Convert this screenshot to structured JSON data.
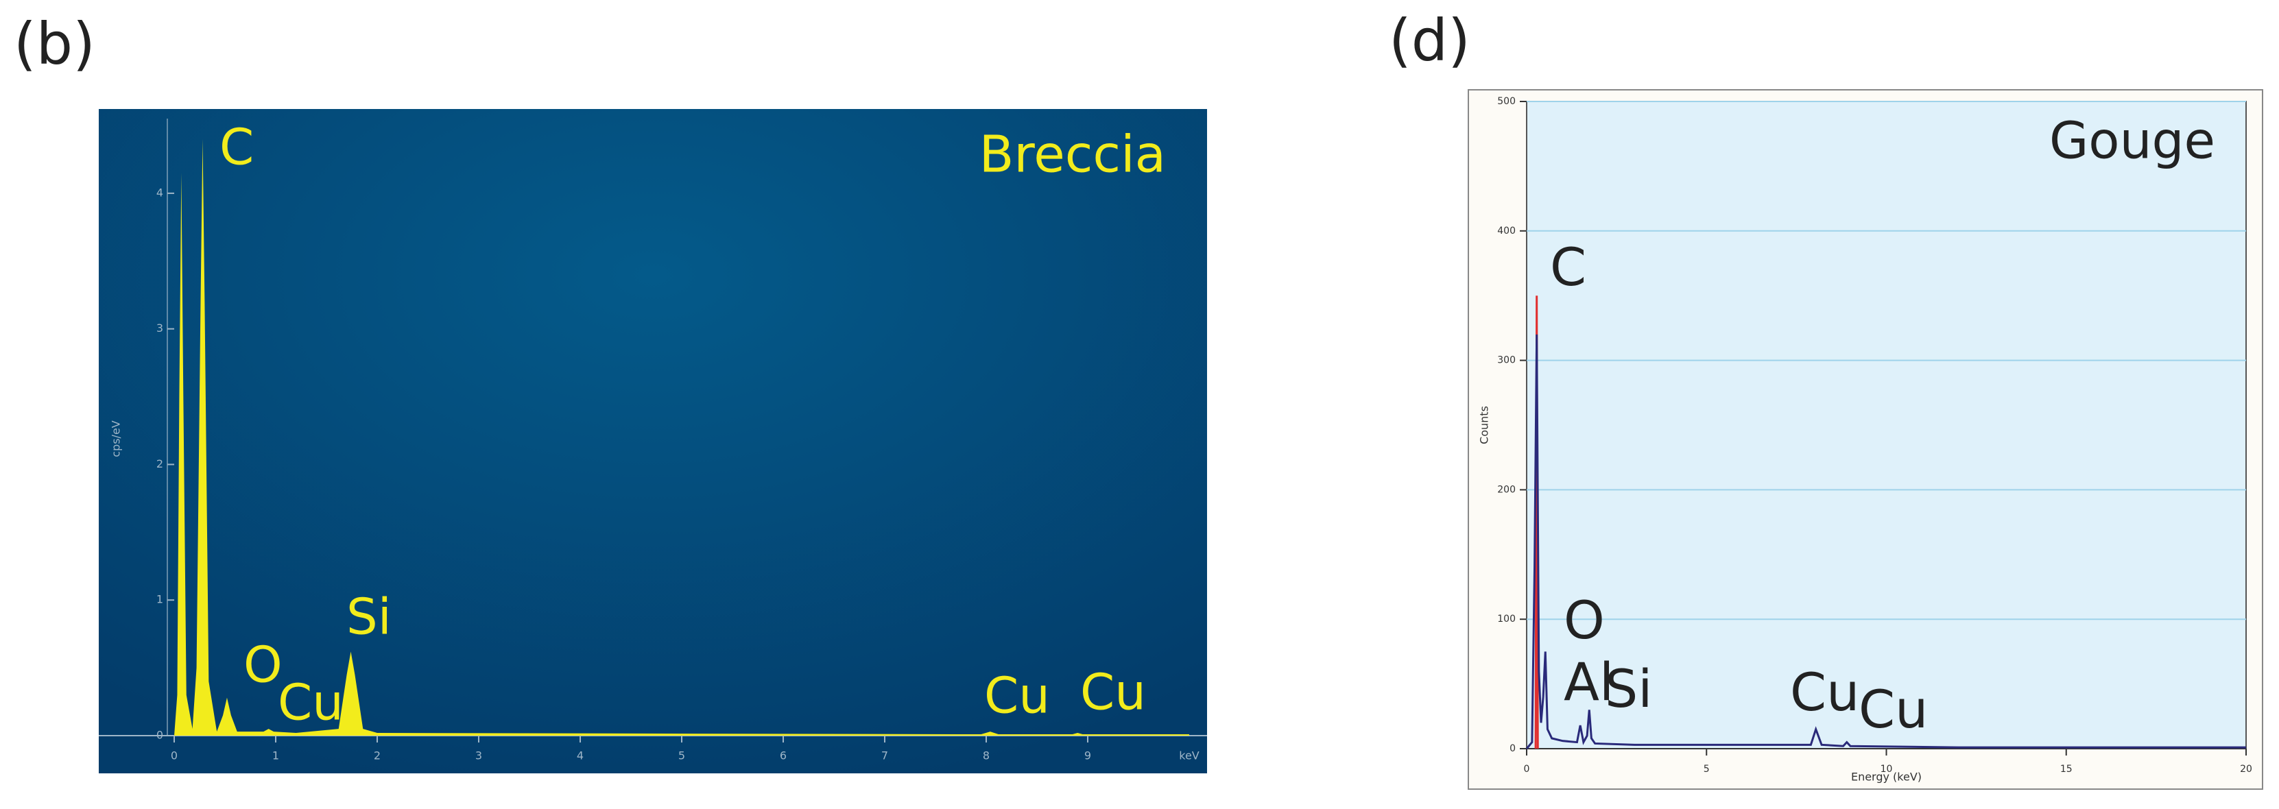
{
  "chart_data": [
    {
      "type": "area",
      "panel_label": "(b)",
      "title": "Breccia",
      "y_label": "cps/eV",
      "x_label": "keV",
      "xlim": [
        0,
        10
      ],
      "xticks": [
        0,
        1,
        2,
        3,
        4,
        5,
        6,
        7,
        8,
        9
      ],
      "ylim": [
        0,
        4.5
      ],
      "yticks": [
        0,
        1,
        2,
        3,
        4
      ],
      "grid": false,
      "series": [
        {
          "color": "#f2ec1c",
          "x": [
            0,
            0.03,
            0.05,
            0.07,
            0.09,
            0.12,
            0.18,
            0.22,
            0.26,
            0.28,
            0.3,
            0.34,
            0.42,
            0.48,
            0.52,
            0.56,
            0.62,
            0.88,
            0.93,
            0.98,
            1.2,
            1.62,
            1.7,
            1.74,
            1.78,
            1.86,
            2.0,
            7.95,
            8.04,
            8.12,
            8.85,
            8.9,
            8.95,
            10
          ],
          "values": [
            0,
            0.3,
            2.5,
            4.15,
            2.5,
            0.3,
            0.05,
            0.5,
            3.2,
            4.4,
            3.2,
            0.4,
            0.03,
            0.15,
            0.28,
            0.15,
            0.03,
            0.03,
            0.05,
            0.03,
            0.02,
            0.05,
            0.45,
            0.62,
            0.45,
            0.05,
            0.02,
            0.01,
            0.03,
            0.01,
            0.01,
            0.02,
            0.01,
            0.01
          ]
        }
      ],
      "annotations": [
        "C",
        "O",
        "Cu",
        "Si",
        "Cu",
        "Cu"
      ]
    },
    {
      "type": "line",
      "panel_label": "(d)",
      "title": "Gouge",
      "y_label": "Counts",
      "x_label": "Energy (keV)",
      "xlim": [
        0,
        20
      ],
      "xticks": [
        0,
        5,
        10,
        15,
        20
      ],
      "ylim": [
        0,
        500
      ],
      "yticks": [
        0,
        100,
        200,
        300,
        400,
        500
      ],
      "grid": true,
      "series": [
        {
          "color": "#e03030",
          "x": [
            0.25,
            0.28,
            0.31
          ],
          "values": [
            0,
            350,
            0
          ]
        },
        {
          "color": "#2a2a7a",
          "x": [
            0,
            0.15,
            0.22,
            0.28,
            0.34,
            0.4,
            0.46,
            0.52,
            0.58,
            0.7,
            1.0,
            1.4,
            1.49,
            1.58,
            1.68,
            1.74,
            1.8,
            1.9,
            3,
            5,
            7.9,
            8.04,
            8.2,
            8.8,
            8.9,
            9.0,
            12,
            20
          ],
          "values": [
            0,
            5,
            140,
            320,
            60,
            20,
            40,
            75,
            15,
            8,
            6,
            5,
            18,
            5,
            10,
            30,
            8,
            4,
            3,
            3,
            3,
            15,
            3,
            2,
            5,
            2,
            1,
            1
          ]
        }
      ],
      "annotations": [
        "C",
        "O",
        "Al",
        "Si",
        "Cu",
        "Cu"
      ]
    }
  ]
}
